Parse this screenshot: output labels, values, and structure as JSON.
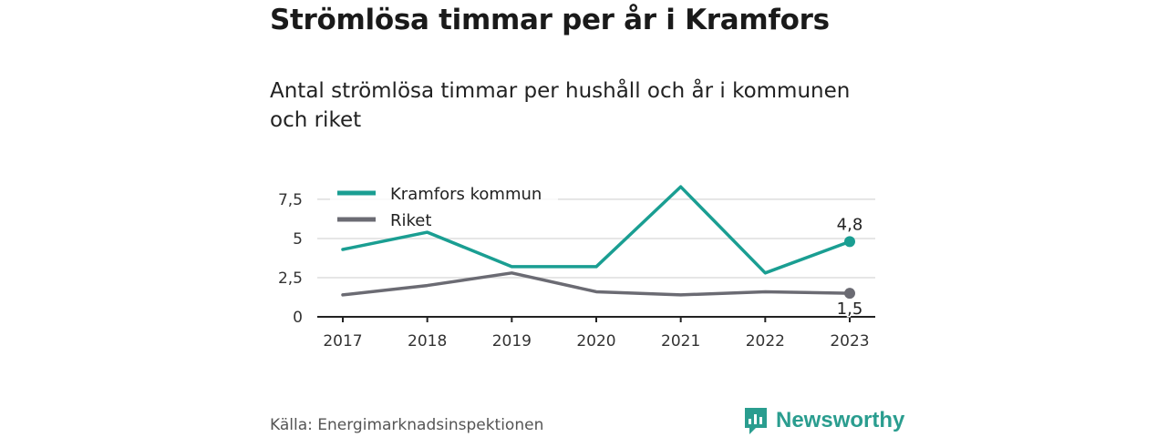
{
  "title": "Strömlösa timmar per år i Kramfors",
  "subtitle": "Antal strömlösa timmar per hushåll och år i kommunen och riket",
  "source": "Källa: Energimarknadsinspektionen",
  "brand": {
    "name": "Newsworthy",
    "icon": "newsworthy-logo-icon"
  },
  "colors": {
    "kramfors": "#1a9e92",
    "riket": "#6b6b73",
    "grid": "#dddddd",
    "axis": "#222222"
  },
  "chart_data": {
    "type": "line",
    "x": [
      "2017",
      "2018",
      "2019",
      "2020",
      "2021",
      "2022",
      "2023"
    ],
    "yticks": [
      "0",
      "2,5",
      "5",
      "7,5"
    ],
    "ylim": [
      0,
      8.6
    ],
    "grid": true,
    "legend_position": "top-left",
    "series": [
      {
        "name": "Kramfors kommun",
        "color": "#1a9e92",
        "values": [
          4.3,
          5.4,
          3.2,
          3.2,
          8.3,
          2.8,
          4.8
        ],
        "end_label": "4,8"
      },
      {
        "name": "Riket",
        "color": "#6b6b73",
        "values": [
          1.4,
          2.0,
          2.8,
          1.6,
          1.4,
          1.6,
          1.5
        ],
        "end_label": "1,5"
      }
    ]
  }
}
